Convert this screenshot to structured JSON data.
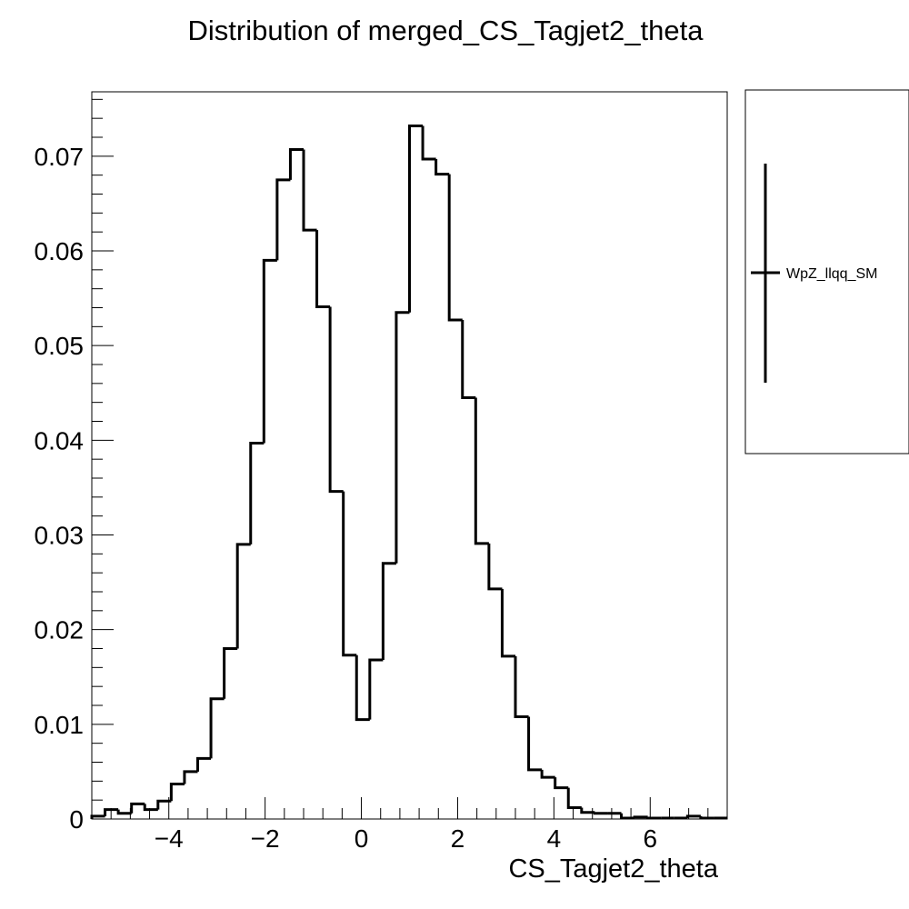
{
  "chart_data": {
    "type": "bar",
    "style": "step-histogram",
    "title": "Distribution of merged_CS_Tagjet2_theta",
    "xlabel": "CS_Tagjet2_theta",
    "ylabel": "",
    "xlim": [
      -5.6,
      7.6
    ],
    "ylim": [
      0,
      0.0768
    ],
    "bin_start": -5.6,
    "bin_width": 0.275,
    "x_ticks": [
      -4,
      -2,
      0,
      2,
      4,
      6
    ],
    "x_tick_labels": [
      "−4",
      "−2",
      "0",
      "2",
      "4",
      "6"
    ],
    "y_ticks": [
      0,
      0.01,
      0.02,
      0.03,
      0.04,
      0.05,
      0.06,
      0.07
    ],
    "y_tick_labels": [
      "0",
      "0.01",
      "0.02",
      "0.03",
      "0.04",
      "0.05",
      "0.06",
      "0.07"
    ],
    "series": [
      {
        "name": "WpZ_llqq_SM",
        "color": "#000000",
        "values": [
          0.0003,
          0.001,
          0.0006,
          0.0016,
          0.001,
          0.0019,
          0.0037,
          0.005,
          0.0064,
          0.0127,
          0.018,
          0.029,
          0.0397,
          0.059,
          0.0675,
          0.0707,
          0.0622,
          0.0541,
          0.0346,
          0.0173,
          0.0105,
          0.0168,
          0.027,
          0.0535,
          0.0732,
          0.0697,
          0.0681,
          0.0527,
          0.0445,
          0.0291,
          0.0243,
          0.0172,
          0.0108,
          0.0052,
          0.0044,
          0.0033,
          0.0012,
          0.0007,
          0.0006,
          0.0006,
          0.0001,
          0.0002,
          0.0001,
          0.0001,
          0.0001,
          0.0003,
          0.0001,
          0.0001
        ]
      }
    ],
    "legend": {
      "position": "right",
      "entries": [
        "WpZ_llqq_SM"
      ]
    },
    "grid": false
  }
}
